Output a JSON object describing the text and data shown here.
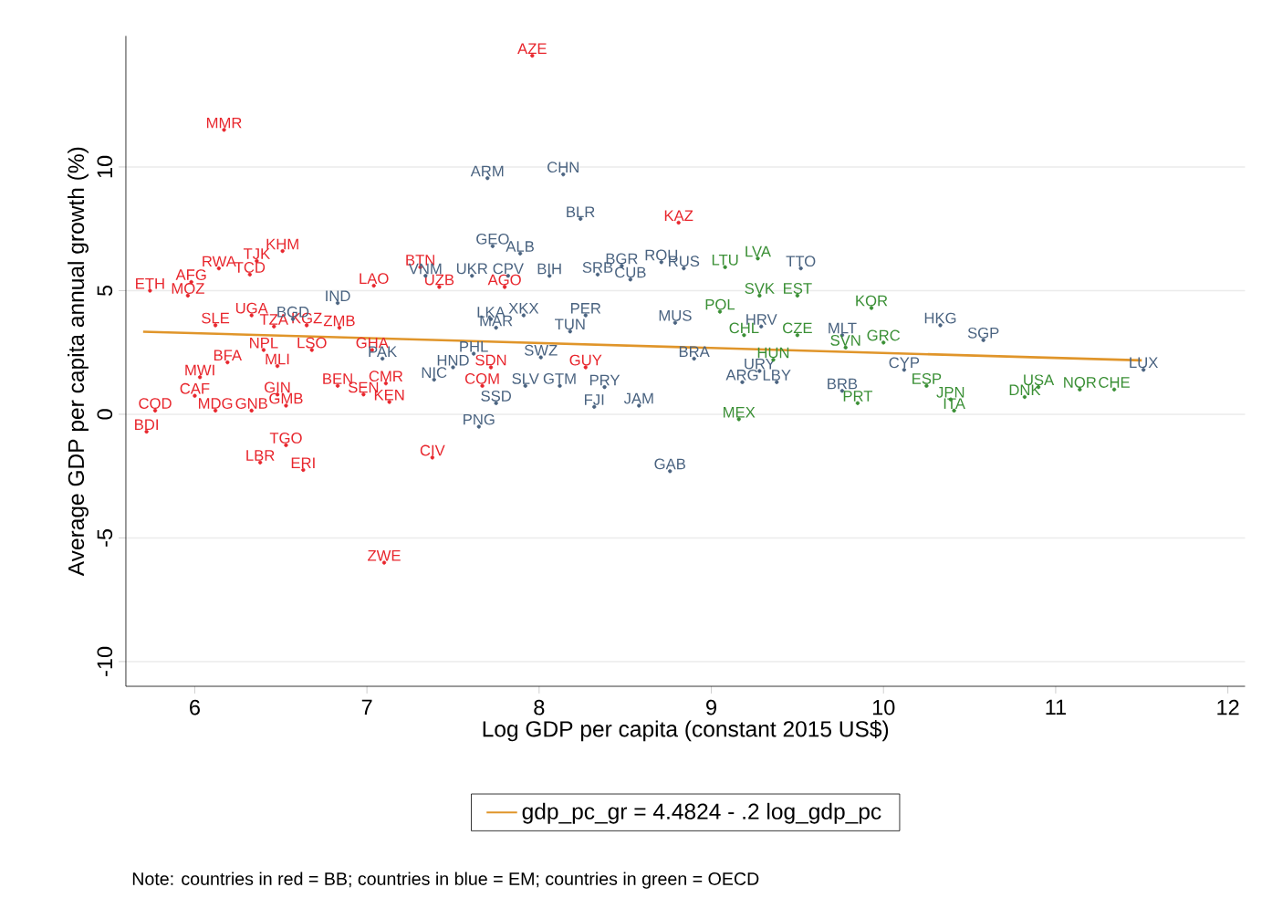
{
  "chart_data": {
    "type": "scatter",
    "xlabel": "Log GDP per capita (constant 2015 US$)",
    "ylabel": "Average GDP per capita annual growth (%)",
    "xlim": [
      5.6,
      12.1
    ],
    "ylim": [
      -11,
      15.3
    ],
    "xticks": [
      6,
      7,
      8,
      9,
      10,
      11,
      12
    ],
    "yticks": [
      -10,
      -5,
      0,
      5,
      10
    ],
    "grid": "y",
    "legend": "bottom",
    "marker": "circle",
    "annotations": [
      "Note: countries in red = BB; countries in blue = EM; countries in green = OECD"
    ],
    "series": [
      {
        "color": "#e8262d",
        "x": [
          6.17,
          7.96,
          8.81,
          6.51,
          6.36,
          6.14,
          6.32,
          5.98,
          5.74,
          5.96,
          7.31,
          7.04,
          7.42,
          7.8,
          6.33,
          6.46,
          6.65,
          6.84,
          6.12,
          6.4,
          6.68,
          7.03,
          6.19,
          6.48,
          6.03,
          6.83,
          7.11,
          6.98,
          7.13,
          6.48,
          6.53,
          5.77,
          6.0,
          6.12,
          6.33,
          5.72,
          6.53,
          6.38,
          6.63,
          7.38,
          7.1,
          7.67,
          7.72,
          8.27
        ],
        "values": [
          11.5,
          14.5,
          7.75,
          6.6,
          6.2,
          5.9,
          5.65,
          5.35,
          5.0,
          4.8,
          5.95,
          5.2,
          5.15,
          5.15,
          4.0,
          3.55,
          3.6,
          3.5,
          3.6,
          2.6,
          2.6,
          2.6,
          2.1,
          1.95,
          1.5,
          1.15,
          1.25,
          0.8,
          0.5,
          0.8,
          0.35,
          0.15,
          0.75,
          0.15,
          0.15,
          -0.7,
          -1.25,
          -1.95,
          -2.25,
          -1.75,
          -6.0,
          1.15,
          1.9,
          1.9
        ],
        "value_labels": [
          "MMR",
          "AZE",
          "KAZ",
          "KHM",
          "TJK",
          "RWA",
          "TCD",
          "AFG",
          "ETH",
          "MOZ",
          "BTN",
          "LAO",
          "UZB",
          "AGO",
          "UGA",
          "TZA",
          "KGZ",
          "ZMB",
          "SLE",
          "NPL",
          "LSO",
          "GHA",
          "BFA",
          "MLI",
          "MWI",
          "BEN",
          "CMR",
          "SEN",
          "KEN",
          "GIN",
          "GMB",
          "COD",
          "CAF",
          "MDG",
          "GNB",
          "BDI",
          "TGO",
          "LBR",
          "ERI",
          "CIV",
          "ZWE",
          "COM",
          "SDN",
          "GUY"
        ]
      },
      {
        "color": "#4a6380",
        "x": [
          7.7,
          8.14,
          8.24,
          7.73,
          7.89,
          7.82,
          7.61,
          7.34,
          8.06,
          8.34,
          8.48,
          8.71,
          8.53,
          8.84,
          6.83,
          6.57,
          7.72,
          7.91,
          7.75,
          8.27,
          8.79,
          8.18,
          7.09,
          7.62,
          8.01,
          7.5,
          7.39,
          7.92,
          8.12,
          8.38,
          7.65,
          7.75,
          8.32,
          8.58,
          8.9,
          8.76,
          9.28,
          9.18,
          9.38,
          9.76,
          9.52,
          9.29,
          10.12,
          10.33,
          10.58,
          11.51,
          9.76
        ],
        "values": [
          9.55,
          9.7,
          7.9,
          6.8,
          6.5,
          5.6,
          5.6,
          5.6,
          5.6,
          5.65,
          6.0,
          6.15,
          5.45,
          5.9,
          4.5,
          3.85,
          3.85,
          4.0,
          3.5,
          4.0,
          3.7,
          3.35,
          2.25,
          2.45,
          2.3,
          1.9,
          1.4,
          1.15,
          1.15,
          1.1,
          -0.5,
          0.45,
          0.3,
          0.35,
          2.25,
          -2.3,
          1.75,
          1.3,
          1.3,
          0.95,
          5.9,
          3.55,
          1.8,
          3.6,
          3.0,
          1.8,
          3.2
        ],
        "value_labels": [
          "ARM",
          "CHN",
          "BLR",
          "GEO",
          "ALB",
          "CPV",
          "UKR",
          "VNM",
          "BIH",
          "SRB",
          "BGR",
          "ROU",
          "CUB",
          "RUS",
          "IND",
          "BGD",
          "LKA",
          "XKX",
          "MAR",
          "PER",
          "MUS",
          "TUN",
          "PAK",
          "PHL",
          "SWZ",
          "HND",
          "NIC",
          "SLV",
          "GTM",
          "PRY",
          "PNG",
          "SSD",
          "FJI",
          "JAM",
          "BRA",
          "GAB",
          "URY",
          "ARG",
          "LBY",
          "BRB",
          "TTO",
          "HRV",
          "CYP",
          "HKG",
          "SGP",
          "LUX",
          "MLT"
        ]
      },
      {
        "color": "#3a8f35",
        "x": [
          9.27,
          9.08,
          9.05,
          9.28,
          9.5,
          9.93,
          9.19,
          9.36,
          9.16,
          9.85,
          10.25,
          10.41,
          10.39,
          10.82,
          10.9,
          11.14,
          11.34,
          9.5,
          9.78,
          10.0
        ],
        "values": [
          6.3,
          5.95,
          4.15,
          4.8,
          4.8,
          4.3,
          3.2,
          2.2,
          -0.2,
          0.45,
          1.15,
          0.15,
          0.6,
          0.7,
          1.1,
          1.0,
          1.0,
          3.2,
          2.7,
          2.9
        ],
        "value_labels": [
          "LVA",
          "LTU",
          "POL",
          "SVK",
          "EST",
          "KOR",
          "CHL",
          "HUN",
          "MEX",
          "PRT",
          "ESP",
          "ITA",
          "JPN",
          "DNK",
          "USA",
          "NOR",
          "CHE",
          "CZE",
          "SVN",
          "GRC"
        ]
      },
      {
        "type": "line",
        "marker": "none",
        "name": "gdp_pc_gr =  4.4824 -     .2 log_gdp_pc",
        "color": "#e0952a",
        "x": [
          5.7,
          11.5
        ],
        "values": [
          3.34,
          2.18
        ]
      }
    ]
  }
}
